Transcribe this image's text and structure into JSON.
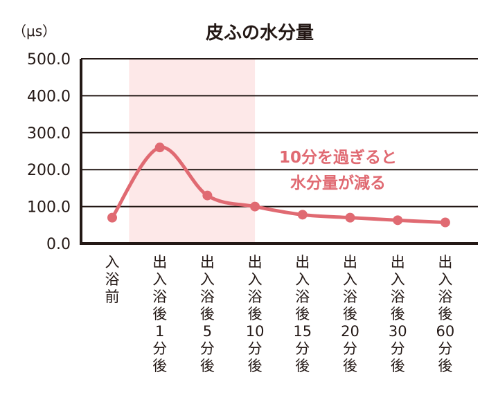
{
  "colors": {
    "series": "#e06a72",
    "highlight": "#fde8e8",
    "axis": "#231815",
    "text": "#231815"
  },
  "chart_data": {
    "type": "line",
    "title": "皮ふの水分量",
    "ylabel": "（μs）",
    "xlabel": "",
    "ylim": [
      0,
      500
    ],
    "yticks": [
      "0.0",
      "100.0",
      "200.0",
      "300.0",
      "400.0",
      "500.0"
    ],
    "grid": true,
    "categories": [
      "入浴前",
      "出入浴後1分後",
      "出入浴後5分後",
      "出入浴後10分後",
      "出入浴後15分後",
      "出入浴後20分後",
      "出入浴後30分後",
      "出入浴後60分後"
    ],
    "series": [
      {
        "values": [
          70,
          260,
          130,
          100,
          78,
          70,
          63,
          57
        ]
      }
    ],
    "highlight_range": [
      "出入浴後1分後",
      "出入浴後10分後"
    ],
    "annotations": [
      "10分を過ぎると",
      "水分量が減る"
    ]
  }
}
